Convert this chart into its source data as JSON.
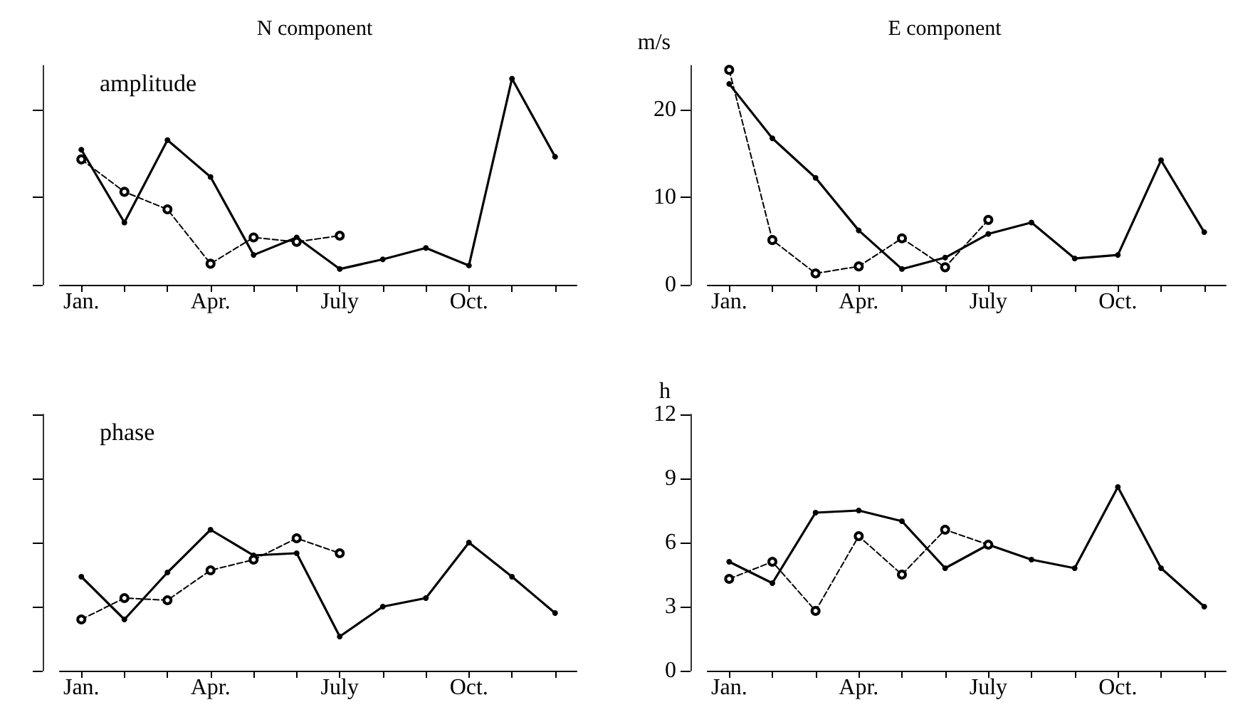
{
  "chart_data": [
    {
      "type": "line",
      "title": "N component",
      "annotations": [
        "amplitude"
      ],
      "categories": [
        "Jan.",
        null,
        null,
        "Apr.",
        null,
        null,
        "July",
        null,
        null,
        "Oct.",
        null,
        null
      ],
      "ylim": [
        0,
        25
      ],
      "yticks": [
        0,
        10,
        20
      ],
      "tick_labels": "x",
      "series": [
        {
          "color": "#000000",
          "line_style": "solid",
          "marker": "circle",
          "values": [
            15.4,
            7.1,
            16.5,
            12.3,
            3.4,
            5.4,
            1.8,
            2.9,
            4.2,
            2.2,
            23.5,
            14.6
          ]
        },
        {
          "color": "#000000",
          "line_style": "dashed",
          "marker": "circle",
          "values": [
            14.3,
            10.6,
            8.6,
            2.4,
            5.4,
            4.9,
            5.6,
            null,
            null,
            null,
            null,
            null
          ]
        }
      ]
    },
    {
      "type": "line",
      "title": "E component",
      "ylabel": "m/s",
      "categories": [
        "Jan.",
        null,
        null,
        "Apr.",
        null,
        null,
        "July",
        null,
        null,
        "Oct.",
        null,
        null
      ],
      "ylim": [
        0,
        25
      ],
      "yticks": [
        0,
        10,
        20
      ],
      "series": [
        {
          "color": "#000000",
          "line_style": "solid",
          "marker": "circle",
          "values": [
            22.9,
            16.7,
            12.2,
            6.2,
            1.8,
            3.1,
            5.8,
            7.1,
            3.0,
            3.4,
            14.2,
            6.0
          ]
        },
        {
          "color": "#000000",
          "line_style": "dashed",
          "marker": "circle",
          "values": [
            24.5,
            5.1,
            1.3,
            2.1,
            5.3,
            2.0,
            7.4,
            null,
            null,
            null,
            null,
            null
          ]
        }
      ]
    },
    {
      "type": "line",
      "annotations": [
        "phase"
      ],
      "categories": [
        "Jan.",
        null,
        null,
        "Apr.",
        null,
        null,
        "July",
        null,
        null,
        "Oct.",
        null,
        null
      ],
      "ylim": [
        0,
        12
      ],
      "yticks": [
        0,
        3,
        6,
        9,
        12
      ],
      "tick_labels": "x",
      "series": [
        {
          "color": "#000000",
          "line_style": "solid",
          "marker": "circle",
          "values": [
            4.4,
            2.4,
            4.6,
            6.6,
            5.4,
            5.5,
            1.6,
            3.0,
            3.4,
            6.0,
            4.4,
            2.7
          ]
        },
        {
          "color": "#000000",
          "line_style": "dashed",
          "marker": "circle",
          "values": [
            2.4,
            3.4,
            3.3,
            4.7,
            5.2,
            6.2,
            5.5,
            null,
            null,
            null,
            null,
            null
          ]
        }
      ]
    },
    {
      "type": "line",
      "ylabel": "h",
      "categories": [
        "Jan.",
        null,
        null,
        "Apr.",
        null,
        null,
        "July",
        null,
        null,
        "Oct.",
        null,
        null
      ],
      "ylim": [
        0,
        12
      ],
      "yticks": [
        0,
        3,
        6,
        9,
        12
      ],
      "series": [
        {
          "color": "#000000",
          "line_style": "solid",
          "marker": "circle",
          "values": [
            5.1,
            4.1,
            7.4,
            7.5,
            7.0,
            4.8,
            5.9,
            5.2,
            4.8,
            8.6,
            4.8,
            3.0
          ]
        },
        {
          "color": "#000000",
          "line_style": "dashed",
          "marker": "circle",
          "values": [
            4.3,
            5.1,
            2.8,
            6.3,
            4.5,
            6.6,
            5.9,
            null,
            null,
            null,
            null,
            null
          ]
        }
      ]
    }
  ]
}
